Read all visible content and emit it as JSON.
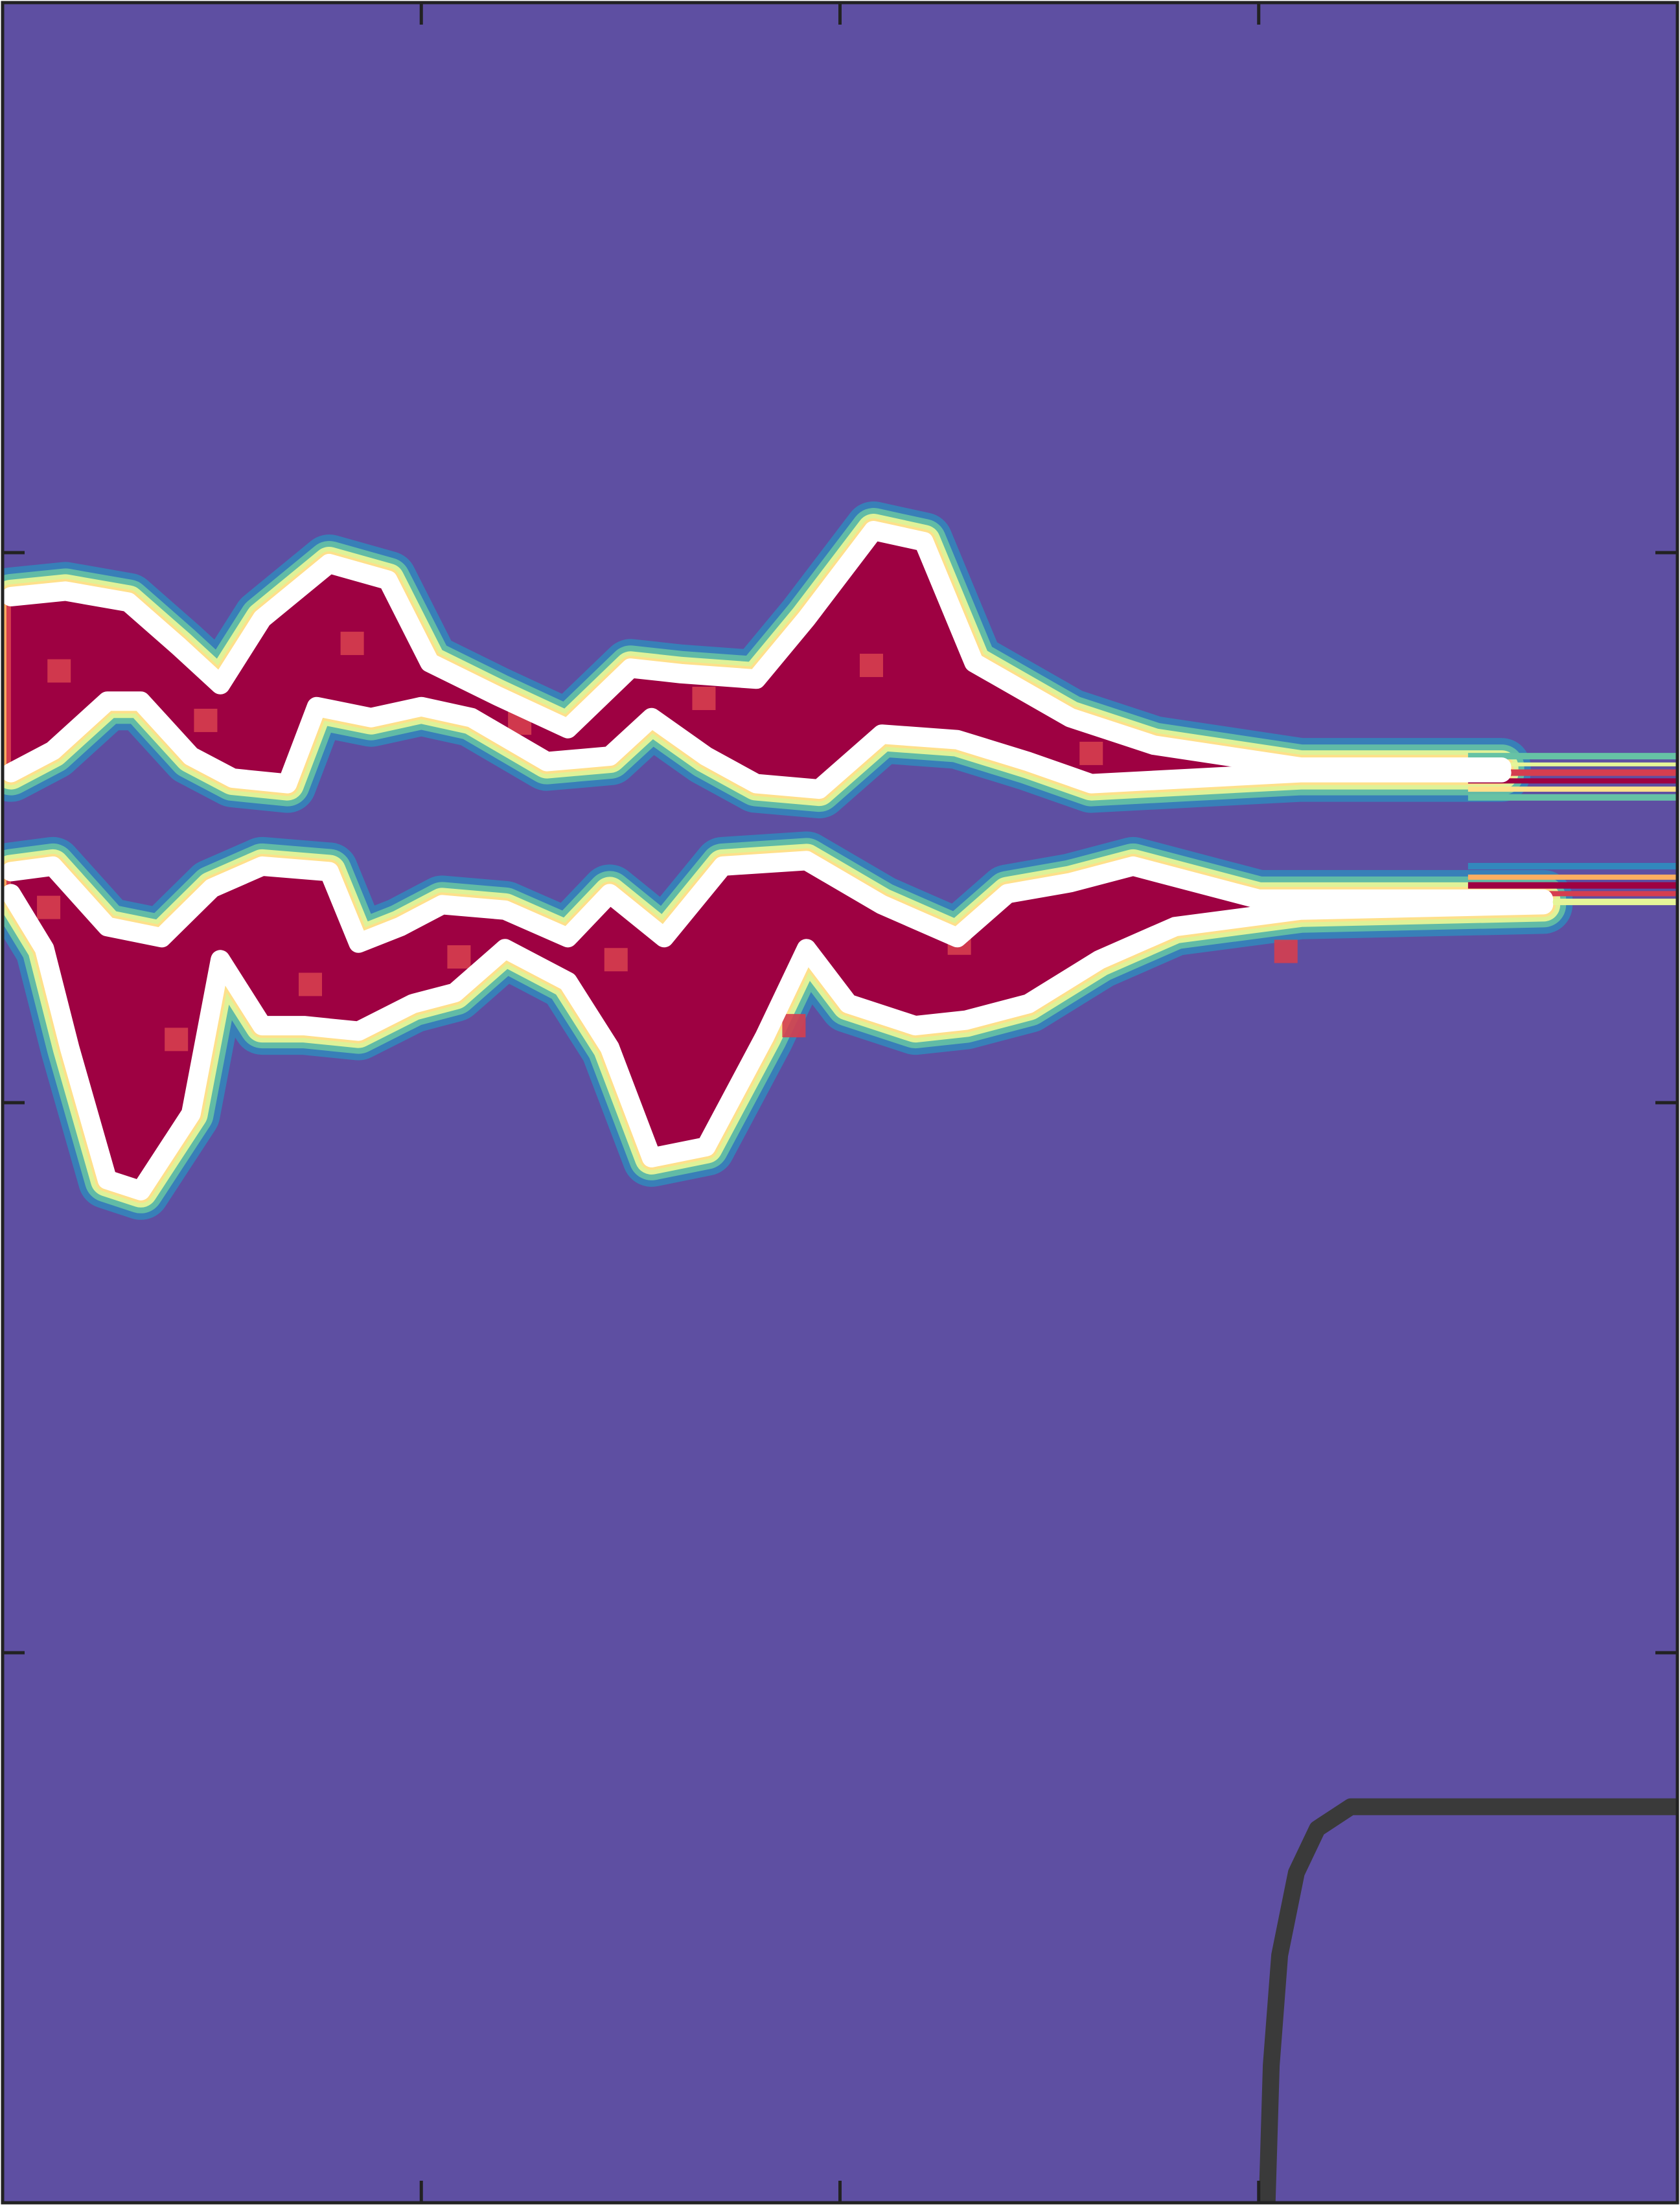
{
  "chart_data": {
    "type": "heatmap",
    "title": "",
    "xlabel": "",
    "ylabel": "",
    "tick_labels_shown": false,
    "xlim": [
      0,
      4
    ],
    "ylim": [
      0,
      4
    ],
    "x_ticks": [
      1,
      2,
      3
    ],
    "y_ticks": [
      1,
      2,
      3
    ],
    "grid": false,
    "colormap": "Spectral_r",
    "colors": {
      "background": "#5e4fa2",
      "low": "#3288bd",
      "low_mid": "#66c2a5",
      "mid": "#e6f598",
      "mid_high": "#fee08b",
      "high": "#fdae61",
      "higher": "#d53e4f",
      "peak": "#9e0142",
      "contour": "#ffffff",
      "boundary_curve": "#3a3a3a"
    },
    "series": [
      {
        "kind": "band",
        "upper": [
          [
            0.02,
            2.92
          ],
          [
            0.15,
            2.93
          ],
          [
            0.3,
            2.91
          ],
          [
            0.42,
            2.83
          ],
          [
            0.52,
            2.76
          ],
          [
            0.62,
            2.88
          ],
          [
            0.78,
            2.98
          ],
          [
            0.92,
            2.95
          ],
          [
            1.02,
            2.8
          ],
          [
            1.18,
            2.74
          ],
          [
            1.35,
            2.68
          ],
          [
            1.5,
            2.79
          ],
          [
            1.62,
            2.78
          ],
          [
            1.8,
            2.77
          ],
          [
            1.92,
            2.88
          ],
          [
            2.08,
            3.04
          ],
          [
            2.2,
            3.02
          ],
          [
            2.32,
            2.8
          ],
          [
            2.55,
            2.7
          ],
          [
            2.75,
            2.65
          ],
          [
            3.1,
            2.61
          ],
          [
            3.58,
            2.61
          ]
        ],
        "lower": [
          [
            0.02,
            2.6
          ],
          [
            0.12,
            2.64
          ],
          [
            0.25,
            2.73
          ],
          [
            0.33,
            2.73
          ],
          [
            0.45,
            2.63
          ],
          [
            0.55,
            2.59
          ],
          [
            0.68,
            2.58
          ],
          [
            0.75,
            2.72
          ],
          [
            0.88,
            2.7
          ],
          [
            1.0,
            2.72
          ],
          [
            1.12,
            2.7
          ],
          [
            1.3,
            2.62
          ],
          [
            1.45,
            2.63
          ],
          [
            1.55,
            2.7
          ],
          [
            1.68,
            2.63
          ],
          [
            1.8,
            2.58
          ],
          [
            1.95,
            2.57
          ],
          [
            2.1,
            2.67
          ],
          [
            2.28,
            2.66
          ],
          [
            2.45,
            2.62
          ],
          [
            2.6,
            2.58
          ],
          [
            2.85,
            2.59
          ],
          [
            3.1,
            2.6
          ],
          [
            3.58,
            2.6
          ]
        ]
      },
      {
        "kind": "band",
        "upper": [
          [
            0.02,
            2.42
          ],
          [
            0.12,
            2.43
          ],
          [
            0.25,
            2.32
          ],
          [
            0.38,
            2.3
          ],
          [
            0.5,
            2.39
          ],
          [
            0.62,
            2.43
          ],
          [
            0.78,
            2.42
          ],
          [
            0.85,
            2.29
          ],
          [
            0.95,
            2.32
          ],
          [
            1.05,
            2.36
          ],
          [
            1.2,
            2.35
          ],
          [
            1.35,
            2.3
          ],
          [
            1.45,
            2.38
          ],
          [
            1.58,
            2.3
          ],
          [
            1.72,
            2.43
          ],
          [
            1.92,
            2.44
          ],
          [
            2.1,
            2.36
          ],
          [
            2.28,
            2.3
          ],
          [
            2.4,
            2.38
          ],
          [
            2.55,
            2.4
          ],
          [
            2.7,
            2.43
          ],
          [
            3.0,
            2.37
          ],
          [
            3.68,
            2.37
          ]
        ],
        "lower": [
          [
            0.02,
            2.38
          ],
          [
            0.1,
            2.28
          ],
          [
            0.16,
            2.1
          ],
          [
            0.25,
            1.86
          ],
          [
            0.33,
            1.84
          ],
          [
            0.45,
            1.98
          ],
          [
            0.52,
            2.26
          ],
          [
            0.62,
            2.14
          ],
          [
            0.72,
            2.14
          ],
          [
            0.85,
            2.13
          ],
          [
            0.98,
            2.18
          ],
          [
            1.08,
            2.2
          ],
          [
            1.2,
            2.28
          ],
          [
            1.35,
            2.22
          ],
          [
            1.45,
            2.1
          ],
          [
            1.55,
            1.9
          ],
          [
            1.68,
            1.92
          ],
          [
            1.82,
            2.12
          ],
          [
            1.92,
            2.28
          ],
          [
            2.02,
            2.18
          ],
          [
            2.18,
            2.14
          ],
          [
            2.3,
            2.15
          ],
          [
            2.45,
            2.18
          ],
          [
            2.62,
            2.26
          ],
          [
            2.8,
            2.32
          ],
          [
            3.1,
            2.35
          ],
          [
            3.68,
            2.36
          ]
        ]
      },
      {
        "kind": "boundary_curve",
        "points": [
          [
            3.02,
            0.0
          ],
          [
            3.03,
            0.25
          ],
          [
            3.05,
            0.45
          ],
          [
            3.09,
            0.6
          ],
          [
            3.14,
            0.68
          ],
          [
            3.22,
            0.72
          ],
          [
            3.4,
            0.72
          ],
          [
            4.0,
            0.72
          ]
        ]
      }
    ]
  }
}
